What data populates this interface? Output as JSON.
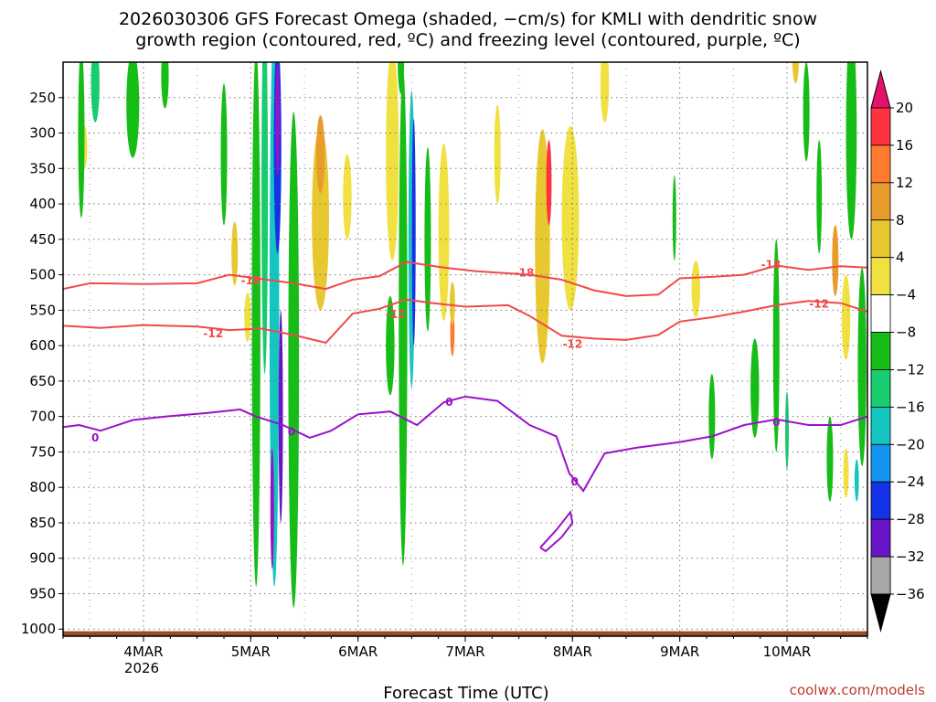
{
  "chart_data": {
    "type": "heatmap",
    "title_line1": "2026030306 GFS Forecast Omega (shaded, −cm/s) for KMLI with dendritic snow",
    "title_line2": "growth region (contoured, red, ºC) and freezing level (contoured, purple, ºC)",
    "xlabel": "Forecast Time (UTC)",
    "credit": "coolwx.com/models",
    "y_axis": {
      "scale": "pressure (hPa, reversed)",
      "range": [
        1010,
        200
      ],
      "ticks": [
        250,
        300,
        350,
        400,
        450,
        500,
        550,
        600,
        650,
        700,
        750,
        800,
        850,
        900,
        950,
        1000
      ]
    },
    "x_axis": {
      "range_days": [
        3.25,
        10.75
      ],
      "ticks": [
        {
          "day": 4,
          "label": "4MAR",
          "sublabel": "2026"
        },
        {
          "day": 5,
          "label": "5MAR",
          "sublabel": ""
        },
        {
          "day": 6,
          "label": "6MAR",
          "sublabel": ""
        },
        {
          "day": 7,
          "label": "7MAR",
          "sublabel": ""
        },
        {
          "day": 8,
          "label": "8MAR",
          "sublabel": ""
        },
        {
          "day": 9,
          "label": "9MAR",
          "sublabel": ""
        },
        {
          "day": 10,
          "label": "10MAR",
          "sublabel": ""
        }
      ]
    },
    "grid": true,
    "colorbar": {
      "labels": [
        "20",
        "16",
        "12",
        "8",
        "4",
        "−4",
        "−8",
        "−12",
        "−16",
        "−20",
        "−24",
        "−28",
        "−32",
        "−36"
      ],
      "colors": [
        "#ff3340",
        "#ff7a2e",
        "#e89c2c",
        "#e8c830",
        "#f0e040",
        "#ffffff",
        "#17bd17",
        "#18cc70",
        "#15c6c0",
        "#1495f0",
        "#1432e8",
        "#6a14c8",
        "#9812c8",
        "#a8a8a8"
      ],
      "top_triangle_color": "#e8106a",
      "bottom_triangle_color": "#000000"
    },
    "surface_color": "#9a4a2a",
    "shading_levels": {
      "positive": [
        {
          "day": 3.45,
          "p": 320,
          "w": 0.05,
          "h": 60,
          "c": 4
        },
        {
          "day": 4.85,
          "p": 470,
          "w": 0.06,
          "h": 90,
          "c": 3
        },
        {
          "day": 4.97,
          "p": 560,
          "w": 0.06,
          "h": 70,
          "c": 4
        },
        {
          "day": 5.65,
          "p": 420,
          "w": 0.16,
          "h": 260,
          "c": 3
        },
        {
          "day": 5.65,
          "p": 330,
          "w": 0.08,
          "h": 110,
          "c": 2
        },
        {
          "day": 5.9,
          "p": 390,
          "w": 0.08,
          "h": 120,
          "c": 4
        },
        {
          "day": 6.32,
          "p": 330,
          "w": 0.12,
          "h": 300,
          "c": 4
        },
        {
          "day": 6.8,
          "p": 440,
          "w": 0.1,
          "h": 250,
          "c": 4
        },
        {
          "day": 6.88,
          "p": 580,
          "w": 0.04,
          "h": 70,
          "c": 1
        },
        {
          "day": 6.88,
          "p": 540,
          "w": 0.05,
          "h": 60,
          "c": 3
        },
        {
          "day": 7.3,
          "p": 330,
          "w": 0.06,
          "h": 140,
          "c": 4
        },
        {
          "day": 7.72,
          "p": 460,
          "w": 0.14,
          "h": 330,
          "c": 3
        },
        {
          "day": 7.78,
          "p": 370,
          "w": 0.05,
          "h": 120,
          "c": 0
        },
        {
          "day": 7.98,
          "p": 420,
          "w": 0.16,
          "h": 260,
          "c": 4
        },
        {
          "day": 8.3,
          "p": 230,
          "w": 0.08,
          "h": 110,
          "c": 4
        },
        {
          "day": 9.15,
          "p": 520,
          "w": 0.08,
          "h": 80,
          "c": 4
        },
        {
          "day": 10.08,
          "p": 200,
          "w": 0.06,
          "h": 60,
          "c": 3
        },
        {
          "day": 10.45,
          "p": 480,
          "w": 0.06,
          "h": 100,
          "c": 2
        },
        {
          "day": 10.55,
          "p": 560,
          "w": 0.08,
          "h": 120,
          "c": 4
        },
        {
          "day": 10.55,
          "p": 780,
          "w": 0.05,
          "h": 70,
          "c": 4
        }
      ],
      "negative": [
        {
          "day": 3.42,
          "p": 300,
          "w": 0.06,
          "h": 240,
          "c": 0
        },
        {
          "day": 3.55,
          "p": 230,
          "w": 0.08,
          "h": 110,
          "c": 1
        },
        {
          "day": 3.9,
          "p": 260,
          "w": 0.12,
          "h": 150,
          "c": 0
        },
        {
          "day": 4.2,
          "p": 220,
          "w": 0.07,
          "h": 90,
          "c": 0
        },
        {
          "day": 4.75,
          "p": 330,
          "w": 0.06,
          "h": 200,
          "c": 0
        },
        {
          "day": 5.05,
          "p": 560,
          "w": 0.08,
          "h": 760,
          "c": 0
        },
        {
          "day": 5.13,
          "p": 380,
          "w": 0.06,
          "h": 520,
          "c": 1
        },
        {
          "day": 5.22,
          "p": 540,
          "w": 0.09,
          "h": 800,
          "c": 2
        },
        {
          "day": 5.25,
          "p": 320,
          "w": 0.07,
          "h": 300,
          "c": 4
        },
        {
          "day": 5.25,
          "p": 280,
          "w": 0.04,
          "h": 160,
          "c": 6
        },
        {
          "day": 5.28,
          "p": 700,
          "w": 0.04,
          "h": 300,
          "c": 5
        },
        {
          "day": 5.2,
          "p": 830,
          "w": 0.03,
          "h": 170,
          "c": 6
        },
        {
          "day": 5.4,
          "p": 620,
          "w": 0.1,
          "h": 700,
          "c": 0
        },
        {
          "day": 6.42,
          "p": 560,
          "w": 0.08,
          "h": 700,
          "c": 0
        },
        {
          "day": 6.5,
          "p": 450,
          "w": 0.06,
          "h": 420,
          "c": 2
        },
        {
          "day": 6.52,
          "p": 440,
          "w": 0.035,
          "h": 320,
          "c": 4
        },
        {
          "day": 6.4,
          "p": 200,
          "w": 0.06,
          "h": 90,
          "c": 0
        },
        {
          "day": 6.65,
          "p": 450,
          "w": 0.06,
          "h": 260,
          "c": 0
        },
        {
          "day": 6.3,
          "p": 600,
          "w": 0.08,
          "h": 140,
          "c": 0
        },
        {
          "day": 8.95,
          "p": 420,
          "w": 0.03,
          "h": 120,
          "c": 0
        },
        {
          "day": 9.3,
          "p": 700,
          "w": 0.06,
          "h": 120,
          "c": 0
        },
        {
          "day": 9.7,
          "p": 660,
          "w": 0.08,
          "h": 140,
          "c": 0
        },
        {
          "day": 9.9,
          "p": 600,
          "w": 0.06,
          "h": 300,
          "c": 0
        },
        {
          "day": 10.0,
          "p": 720,
          "w": 0.03,
          "h": 110,
          "c": 1
        },
        {
          "day": 10.18,
          "p": 270,
          "w": 0.06,
          "h": 140,
          "c": 0
        },
        {
          "day": 10.3,
          "p": 390,
          "w": 0.05,
          "h": 160,
          "c": 0
        },
        {
          "day": 10.4,
          "p": 760,
          "w": 0.06,
          "h": 120,
          "c": 0
        },
        {
          "day": 10.6,
          "p": 300,
          "w": 0.1,
          "h": 300,
          "c": 0
        },
        {
          "day": 10.7,
          "p": 630,
          "w": 0.08,
          "h": 280,
          "c": 0
        },
        {
          "day": 10.65,
          "p": 790,
          "w": 0.04,
          "h": 60,
          "c": 2
        }
      ]
    },
    "contours": [
      {
        "label": "-18",
        "color": "#f04a4a",
        "label_points": [
          [
            5.0,
            508
          ],
          [
            7.55,
            497
          ],
          [
            9.85,
            486
          ]
        ],
        "points": [
          [
            3.25,
            520
          ],
          [
            3.5,
            512
          ],
          [
            4.0,
            513
          ],
          [
            4.5,
            512
          ],
          [
            4.8,
            500
          ],
          [
            5.1,
            506
          ],
          [
            5.4,
            512
          ],
          [
            5.7,
            520
          ],
          [
            5.95,
            507
          ],
          [
            6.2,
            502
          ],
          [
            6.45,
            482
          ],
          [
            6.8,
            490
          ],
          [
            7.1,
            495
          ],
          [
            7.4,
            498
          ],
          [
            7.6,
            500
          ],
          [
            7.9,
            507
          ],
          [
            8.2,
            522
          ],
          [
            8.5,
            530
          ],
          [
            8.8,
            528
          ],
          [
            9.0,
            505
          ],
          [
            9.3,
            503
          ],
          [
            9.6,
            500
          ],
          [
            9.9,
            487
          ],
          [
            10.2,
            493
          ],
          [
            10.5,
            488
          ],
          [
            10.75,
            490
          ]
        ]
      },
      {
        "label": "-12",
        "color": "#f04a4a",
        "label_points": [
          [
            4.65,
            583
          ],
          [
            6.35,
            556
          ],
          [
            8.0,
            598
          ],
          [
            10.3,
            541
          ]
        ],
        "points": [
          [
            3.25,
            572
          ],
          [
            3.6,
            575
          ],
          [
            4.0,
            571
          ],
          [
            4.5,
            573
          ],
          [
            4.8,
            578
          ],
          [
            5.1,
            576
          ],
          [
            5.4,
            585
          ],
          [
            5.7,
            596
          ],
          [
            5.95,
            555
          ],
          [
            6.2,
            548
          ],
          [
            6.45,
            535
          ],
          [
            6.7,
            540
          ],
          [
            7.0,
            545
          ],
          [
            7.4,
            543
          ],
          [
            7.6,
            558
          ],
          [
            7.9,
            586
          ],
          [
            8.2,
            590
          ],
          [
            8.5,
            592
          ],
          [
            8.8,
            585
          ],
          [
            9.0,
            566
          ],
          [
            9.3,
            560
          ],
          [
            9.6,
            552
          ],
          [
            9.9,
            543
          ],
          [
            10.2,
            537
          ],
          [
            10.5,
            540
          ],
          [
            10.75,
            552
          ]
        ]
      },
      {
        "label": "0",
        "color": "#9a12c8",
        "label_points": [
          [
            3.55,
            730
          ],
          [
            5.38,
            722
          ],
          [
            6.85,
            680
          ],
          [
            8.02,
            792
          ],
          [
            9.9,
            708
          ]
        ],
        "points": [
          [
            3.25,
            715
          ],
          [
            3.4,
            712
          ],
          [
            3.6,
            720
          ],
          [
            3.9,
            705
          ],
          [
            4.2,
            700
          ],
          [
            4.6,
            695
          ],
          [
            4.9,
            690
          ],
          [
            5.05,
            700
          ],
          [
            5.3,
            712
          ],
          [
            5.55,
            730
          ],
          [
            5.75,
            720
          ],
          [
            6.0,
            697
          ],
          [
            6.3,
            693
          ],
          [
            6.55,
            712
          ],
          [
            6.8,
            680
          ],
          [
            7.0,
            672
          ],
          [
            7.3,
            678
          ],
          [
            7.6,
            712
          ],
          [
            7.85,
            728
          ],
          [
            7.97,
            780
          ],
          [
            8.1,
            805
          ],
          [
            8.3,
            752
          ],
          [
            8.6,
            744
          ],
          [
            9.0,
            736
          ],
          [
            9.3,
            728
          ],
          [
            9.6,
            712
          ],
          [
            9.9,
            704
          ],
          [
            10.2,
            712
          ],
          [
            10.5,
            712
          ],
          [
            10.75,
            700
          ]
        ]
      },
      {
        "label": "",
        "color": "#9a12c8",
        "label_points": [],
        "points": [
          [
            7.7,
            885
          ],
          [
            7.85,
            860
          ],
          [
            7.98,
            835
          ],
          [
            8.0,
            850
          ],
          [
            7.9,
            870
          ],
          [
            7.75,
            890
          ],
          [
            7.7,
            885
          ]
        ]
      }
    ]
  }
}
